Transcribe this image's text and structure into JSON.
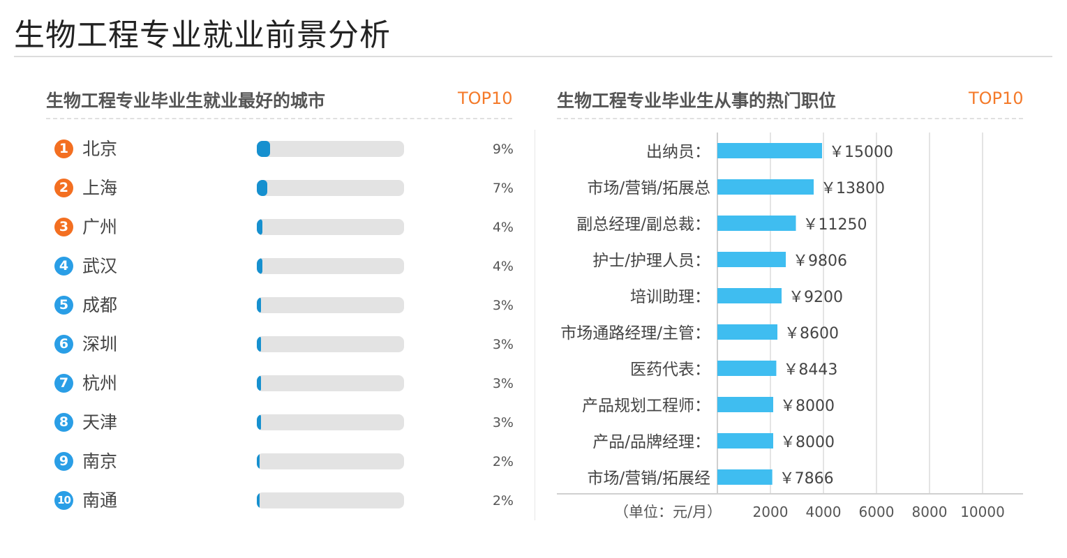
{
  "page": {
    "title": "生物工程专业就业前景分析"
  },
  "cities_panel": {
    "title": "生物工程专业毕业生就业最好的城市",
    "tag": "TOP10",
    "items": [
      {
        "rank": "1",
        "city": "北京",
        "percent_label": "9%",
        "percent": 9
      },
      {
        "rank": "2",
        "city": "上海",
        "percent_label": "7%",
        "percent": 7
      },
      {
        "rank": "3",
        "city": "广州",
        "percent_label": "4%",
        "percent": 4
      },
      {
        "rank": "4",
        "city": "武汉",
        "percent_label": "4%",
        "percent": 4
      },
      {
        "rank": "5",
        "city": "成都",
        "percent_label": "3%",
        "percent": 3
      },
      {
        "rank": "6",
        "city": "深圳",
        "percent_label": "3%",
        "percent": 3
      },
      {
        "rank": "7",
        "city": "杭州",
        "percent_label": "3%",
        "percent": 3
      },
      {
        "rank": "8",
        "city": "天津",
        "percent_label": "3%",
        "percent": 3
      },
      {
        "rank": "9",
        "city": "南京",
        "percent_label": "2%",
        "percent": 2
      },
      {
        "rank": "10",
        "city": "南通",
        "percent_label": "2%",
        "percent": 2
      }
    ]
  },
  "jobs_panel": {
    "title": "生物工程专业毕业生从事的热门职位",
    "tag": "TOP10"
  },
  "colors": {
    "accent_orange": "#f47a2a",
    "rank_hot": "#f36f21",
    "rank_cool": "#2a9ee6",
    "city_bar": "#1690cf",
    "salary_bar": "#3fbdf0"
  },
  "chart_data": [
    {
      "type": "bar",
      "orientation": "horizontal",
      "title": "生物工程专业毕业生就业最好的城市",
      "categories": [
        "北京",
        "上海",
        "广州",
        "武汉",
        "成都",
        "深圳",
        "杭州",
        "天津",
        "南京",
        "南通"
      ],
      "values": [
        9,
        7,
        4,
        4,
        3,
        3,
        3,
        3,
        2,
        2
      ],
      "unit": "%",
      "xlim": [
        0,
        100
      ]
    },
    {
      "type": "bar",
      "orientation": "horizontal",
      "title": "生物工程专业毕业生从事的热门职位",
      "categories": [
        "出纳员：",
        "市场/营销/拓展总",
        "副总经理/副总裁：",
        "护士/护理人员：",
        "培训助理：",
        "市场通路经理/主管：",
        "医药代表：",
        "产品规划工程师：",
        "产品/品牌经理：",
        "市场/营销/拓展经"
      ],
      "values": [
        15000,
        13800,
        11250,
        9806,
        9200,
        8600,
        8443,
        8000,
        8000,
        7866
      ],
      "value_labels": [
        "￥15000",
        "￥13800",
        "￥11250",
        "￥9806",
        "￥9200",
        "￥8600",
        "￥8443",
        "￥8000",
        "￥8000",
        "￥7866"
      ],
      "unit_label": "（单位：元/月）",
      "xticks": [
        2000,
        4000,
        6000,
        8000,
        10000
      ],
      "xtick_labels": [
        "2000",
        "4000",
        "6000",
        "8000",
        "10000"
      ],
      "grid": true
    }
  ]
}
